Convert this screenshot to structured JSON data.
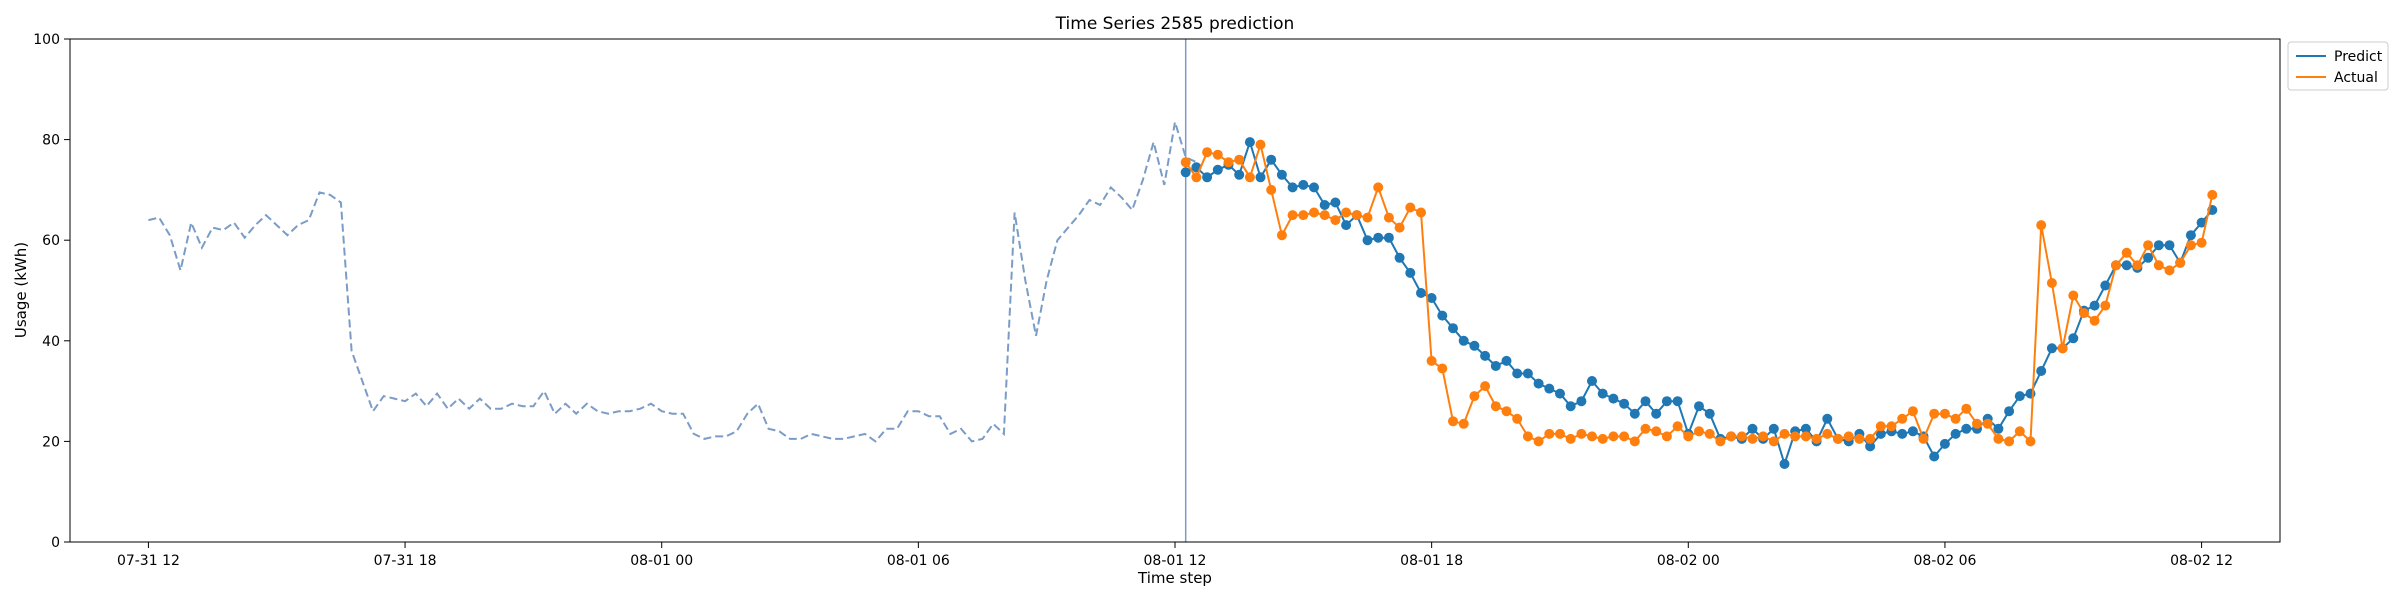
{
  "chart_data": {
    "type": "line",
    "title": "Time Series 2585 prediction",
    "xlabel": "Time step",
    "ylabel": "Usage (kWh)",
    "ylim": [
      0,
      100
    ],
    "yticks": [
      0,
      20,
      40,
      60,
      80,
      100
    ],
    "xlim": [
      "2025-07-31 10:10",
      "2025-08-02 13:50"
    ],
    "xtick_positions": [
      "2025-07-31 12:00",
      "2025-07-31 18:00",
      "2025-08-01 00:00",
      "2025-08-01 06:00",
      "2025-08-01 12:00",
      "2025-08-01 18:00",
      "2025-08-02 00:00",
      "2025-08-02 06:00",
      "2025-08-02 12:00"
    ],
    "xtick_labels": [
      "07-31 12",
      "07-31 18",
      "08-01 00",
      "08-01 06",
      "08-01 12",
      "08-01 18",
      "08-02 00",
      "08-02 06",
      "08-02 12"
    ],
    "split_marker": "2025-08-01 12:15",
    "legend_position": "upper-right-outside",
    "colors": {
      "predict": "#1f77b4",
      "actual": "#ff7f0e",
      "history": "#7a9cc6",
      "split": "#7a9cc6"
    },
    "history": {
      "style": "dashed",
      "start": "2025-07-31 12:00",
      "step_minutes": 15,
      "values": [
        64,
        64.5,
        61,
        54,
        63.5,
        58.5,
        62.5,
        62,
        63.5,
        60.5,
        63,
        65,
        63,
        61,
        63,
        64,
        69.5,
        69,
        67.5,
        38,
        32,
        26,
        29,
        28.5,
        28,
        29.5,
        27,
        29.5,
        26.5,
        28.5,
        26.5,
        28.5,
        26.5,
        26.5,
        27.5,
        27,
        27,
        30,
        25.5,
        27.5,
        25.5,
        27.5,
        26,
        25.5,
        26,
        26,
        26.5,
        27.5,
        26,
        25.5,
        25.5,
        21.5,
        20.5,
        21,
        21,
        22,
        25.5,
        27.5,
        22.5,
        22,
        20.5,
        20.5,
        21.5,
        21,
        20.5,
        20.5,
        21,
        21.5,
        20,
        22.5,
        22.5,
        26,
        26,
        25,
        25,
        21.5,
        22.5,
        20,
        20.5,
        23.5,
        21.5,
        65.5,
        52,
        41,
        52,
        60,
        62.5,
        65,
        68,
        67,
        70.5,
        68.5,
        66,
        72,
        79.5,
        71,
        83.5,
        76.5,
        75.5
      ]
    },
    "series": [
      {
        "name": "Predict",
        "start": "2025-08-01 12:15",
        "step_minutes": 15,
        "values": [
          73.5,
          74.5,
          72.5,
          74,
          75,
          73,
          79.5,
          72.5,
          76,
          73,
          70.5,
          71,
          70.5,
          67,
          67.5,
          63,
          65,
          60,
          60.5,
          60.5,
          56.5,
          53.5,
          49.5,
          48.5,
          45,
          42.5,
          40,
          39,
          37,
          35,
          36,
          33.5,
          33.5,
          31.5,
          30.5,
          29.5,
          27,
          28,
          32,
          29.5,
          28.5,
          27.5,
          25.5,
          28,
          25.5,
          28,
          28,
          21.5,
          27,
          25.5,
          20.5,
          21,
          20.5,
          22.5,
          20.5,
          22.5,
          15.5,
          22,
          22.5,
          20,
          24.5,
          20.5,
          20,
          21.5,
          19,
          21.5,
          22,
          21.5,
          22,
          21,
          17,
          19.5,
          21.5,
          22.5,
          22.5,
          24.5,
          22.5,
          26,
          29,
          29.5,
          34,
          38.5,
          38.5,
          40.5,
          46,
          47,
          51,
          55,
          55,
          54.5,
          56.5,
          59,
          59,
          55.5,
          61,
          63.5,
          66
        ]
      },
      {
        "name": "Actual",
        "start": "2025-08-01 12:15",
        "step_minutes": 15,
        "values": [
          75.5,
          72.5,
          77.5,
          77,
          75.5,
          76,
          72.5,
          79,
          70,
          61,
          65,
          65,
          65.5,
          65,
          64,
          65.5,
          65,
          64.5,
          70.5,
          64.5,
          62.5,
          66.5,
          65.5,
          36,
          34.5,
          24,
          23.5,
          29,
          31,
          27,
          26,
          24.5,
          21,
          20,
          21.5,
          21.5,
          20.5,
          21.5,
          21,
          20.5,
          21,
          21,
          20,
          22.5,
          22,
          21,
          23,
          21,
          22,
          21.5,
          20,
          21,
          21,
          20.5,
          21,
          20,
          21.5,
          21,
          21,
          20.5,
          21.5,
          20.5,
          21,
          20.5,
          20.5,
          23,
          23,
          24.5,
          26,
          20.5,
          25.5,
          25.5,
          24.5,
          26.5,
          23.5,
          23.5,
          20.5,
          20,
          22,
          20,
          63,
          51.5,
          38.5,
          49,
          45.5,
          44,
          47,
          55,
          57.5,
          55,
          59,
          55,
          54,
          55.5,
          59,
          59.5,
          69
        ]
      }
    ]
  }
}
